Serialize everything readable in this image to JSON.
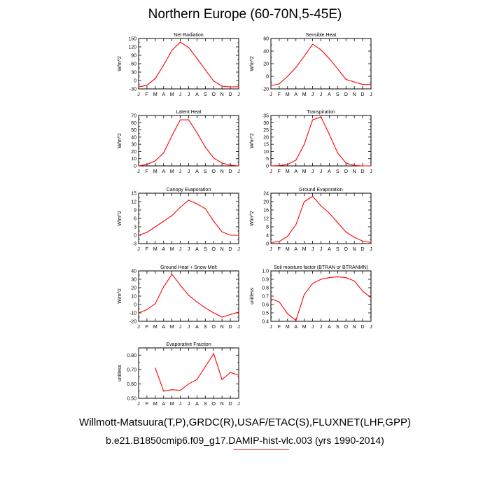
{
  "title": "Northern Europe (60-70N,5-45E)",
  "footer": {
    "line1": "Willmott-Matsuura(T,P),GRDC(R),USAF/ETAC(S),FLUXNET(LHF,GPP)",
    "line2": "b.e21.B1850cmip6.f09_g17.DAMIP-hist-vlc.003 (yrs 1990-2014)"
  },
  "line_color": "#ff0000",
  "chart_data": [
    {
      "type": "line",
      "title": "Net Radiation",
      "ylabel": "W/m^2",
      "categories": [
        "J",
        "F",
        "M",
        "A",
        "M",
        "J",
        "J",
        "A",
        "S",
        "O",
        "N",
        "D",
        "J"
      ],
      "ylim": [
        -30,
        150
      ],
      "yticks": [
        "150",
        "120",
        "90",
        "60",
        "30",
        "0",
        "-30"
      ],
      "values": [
        -23,
        -17,
        7,
        55,
        108,
        137,
        118,
        79,
        38,
        -2,
        -20,
        -23,
        -22
      ]
    },
    {
      "type": "line",
      "title": "Sensible Heat",
      "ylabel": "W/m^2",
      "categories": [
        "J",
        "F",
        "M",
        "A",
        "M",
        "J",
        "J",
        "A",
        "S",
        "O",
        "N",
        "D",
        "J"
      ],
      "ylim": [
        -20,
        60
      ],
      "yticks": [
        "60",
        "40",
        "20",
        "0",
        "-20"
      ],
      "values": [
        -15,
        -12,
        0,
        14,
        32,
        51,
        42,
        28,
        12,
        -5,
        -9,
        -13,
        -13
      ]
    },
    {
      "type": "line",
      "title": "Latent Heat",
      "ylabel": "W/m^2",
      "categories": [
        "J",
        "F",
        "M",
        "A",
        "M",
        "J",
        "J",
        "A",
        "S",
        "O",
        "N",
        "D",
        "J"
      ],
      "ylim": [
        0,
        70
      ],
      "yticks": [
        "70",
        "60",
        "50",
        "40",
        "30",
        "20",
        "10",
        "0"
      ],
      "values": [
        0,
        2,
        7,
        18,
        42,
        64,
        64,
        46,
        26,
        11,
        4,
        1,
        0
      ]
    },
    {
      "type": "line",
      "title": "Transpiration",
      "ylabel": "W/m^2",
      "categories": [
        "J",
        "F",
        "M",
        "A",
        "M",
        "J",
        "J",
        "A",
        "S",
        "O",
        "N",
        "D",
        "J"
      ],
      "ylim": [
        0,
        35
      ],
      "yticks": [
        "35",
        "30",
        "25",
        "20",
        "15",
        "10",
        "5",
        "0"
      ],
      "values": [
        0,
        0.2,
        1,
        4,
        15,
        32,
        34,
        22,
        9,
        2,
        0.3,
        0,
        0
      ]
    },
    {
      "type": "line",
      "title": "Canopy Evaporation",
      "ylabel": "W/m^2",
      "categories": [
        "J",
        "F",
        "M",
        "A",
        "M",
        "J",
        "J",
        "A",
        "S",
        "O",
        "N",
        "D",
        "J"
      ],
      "ylim": [
        -3,
        15
      ],
      "yticks": [
        "15",
        "12",
        "9",
        "6",
        "3",
        "0",
        "-3"
      ],
      "values": [
        0,
        1,
        3,
        5,
        7,
        10,
        12.5,
        11.2,
        9.5,
        5,
        1.2,
        0,
        0
      ]
    },
    {
      "type": "line",
      "title": "Ground Evaporation",
      "ylabel": "W/m^2",
      "categories": [
        "J",
        "F",
        "M",
        "A",
        "M",
        "J",
        "J",
        "A",
        "S",
        "O",
        "N",
        "D",
        "J"
      ],
      "ylim": [
        0,
        24
      ],
      "yticks": [
        "24",
        "20",
        "16",
        "12",
        "8",
        "4",
        "0"
      ],
      "values": [
        0.5,
        1,
        3.5,
        9,
        20,
        22.5,
        18,
        14.5,
        10,
        5.5,
        3,
        1.2,
        0.5
      ]
    },
    {
      "type": "line",
      "title": "Ground Heat + Snow Melt",
      "ylabel": "W/m^2",
      "categories": [
        "J",
        "F",
        "M",
        "A",
        "M",
        "J",
        "J",
        "A",
        "S",
        "O",
        "N",
        "D",
        "J"
      ],
      "ylim": [
        -20,
        40
      ],
      "yticks": [
        "40",
        "30",
        "20",
        "10",
        "0",
        "-10",
        "-20"
      ],
      "values": [
        -10,
        -6,
        1,
        21,
        36,
        23,
        11,
        3,
        -4,
        -10,
        -15,
        -12,
        -9
      ]
    },
    {
      "type": "line",
      "title": "Soil moisture factor (BTRAN or BTRANMN)",
      "ylabel": "unitless",
      "categories": [
        "J",
        "F",
        "M",
        "A",
        "M",
        "J",
        "J",
        "A",
        "S",
        "O",
        "N",
        "D",
        "J"
      ],
      "ylim": [
        0.4,
        1.0
      ],
      "yticks": [
        "1.0",
        "0.9",
        "0.8",
        "0.7",
        "0.6",
        "0.5",
        "0.4"
      ],
      "values": [
        0.67,
        0.63,
        0.49,
        0.41,
        0.72,
        0.85,
        0.9,
        0.92,
        0.93,
        0.92,
        0.88,
        0.76,
        0.68
      ]
    },
    {
      "type": "line",
      "title": "Evaporative Fraction",
      "ylabel": "unitless",
      "categories": [
        "J",
        "F",
        "M",
        "A",
        "M",
        "J",
        "J",
        "A",
        "S",
        "O",
        "N",
        "D",
        "J"
      ],
      "ylim": [
        0.5,
        0.85
      ],
      "yticks": [
        "0.80",
        "0.70",
        "0.60",
        "0.50"
      ],
      "values": [
        null,
        null,
        0.71,
        0.55,
        0.56,
        0.555,
        0.6,
        0.63,
        0.72,
        0.81,
        0.63,
        0.68,
        0.66
      ]
    }
  ]
}
